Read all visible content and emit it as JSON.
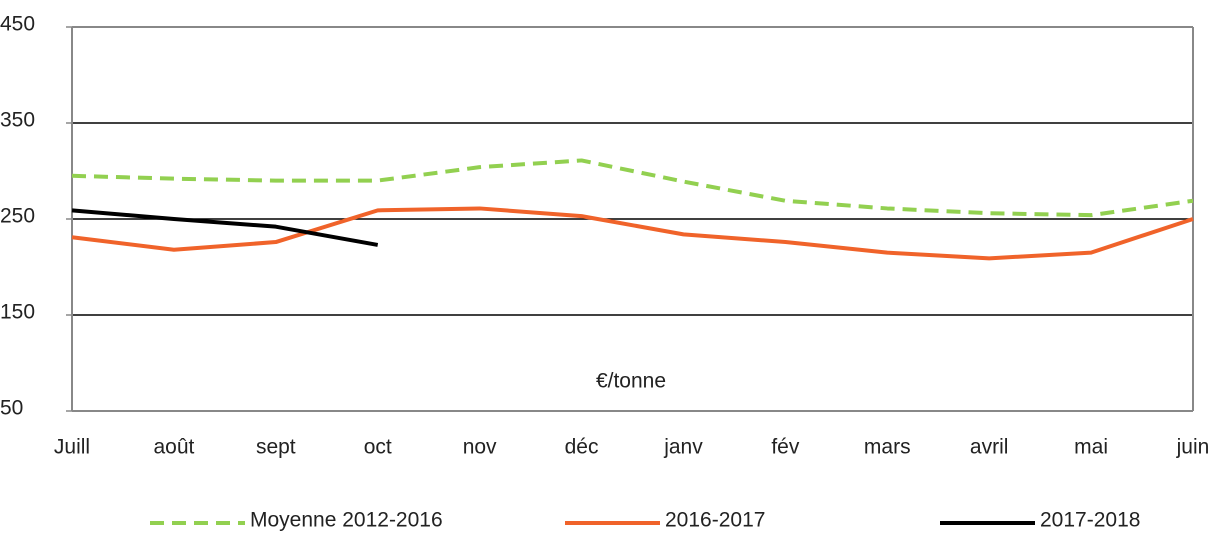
{
  "chart_data": {
    "type": "line",
    "annotation": "€/tonne",
    "categories": [
      "Juill",
      "août",
      "sept",
      "oct",
      "nov",
      "déc",
      "janv",
      "fév",
      "mars",
      "avril",
      "mai",
      "juin"
    ],
    "series": [
      {
        "name": "Moyenne 2012-2016",
        "color": "#92d050",
        "dashed": true,
        "values": [
          295,
          292,
          290,
          290,
          304,
          311,
          289,
          269,
          261,
          256,
          254,
          269
        ]
      },
      {
        "name": "2016-2017",
        "color": "#f0632a",
        "dashed": false,
        "values": [
          231,
          218,
          226,
          259,
          261,
          253,
          234,
          226,
          215,
          209,
          215,
          250
        ]
      },
      {
        "name": "2017-2018",
        "color": "#000000",
        "dashed": false,
        "values": [
          259,
          250,
          242,
          223,
          null,
          null,
          null,
          null,
          null,
          null,
          null,
          null
        ]
      }
    ],
    "ylim": [
      50,
      450
    ],
    "yticks": [
      50,
      150,
      250,
      350,
      450
    ],
    "grid": true,
    "legend": "bottom"
  }
}
